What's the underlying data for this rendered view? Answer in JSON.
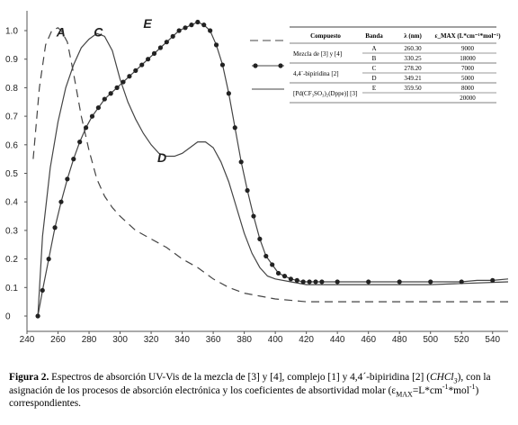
{
  "chart_data": {
    "type": "line",
    "title": "",
    "xlabel": "",
    "ylabel": "",
    "xlim": [
      240,
      550
    ],
    "ylim": [
      0,
      1.0
    ],
    "x_ticks": [
      "240",
      "260",
      "280",
      "300",
      "320",
      "340",
      "360",
      "380",
      "400",
      "420",
      "440",
      "460",
      "480",
      "500",
      "520",
      "540"
    ],
    "y_ticks": [
      "0",
      "0.1",
      "0.2",
      "0.3",
      "0.4",
      "0.5",
      "0.6",
      "0.7",
      "0.8",
      "0.9",
      "1.0"
    ],
    "grid": false,
    "series": [
      {
        "name": "A",
        "style": "dashed",
        "x": [
          244,
          248,
          252,
          256,
          260,
          262,
          266,
          270,
          275,
          280,
          285,
          290,
          295,
          300,
          310,
          320,
          330,
          340,
          350,
          360,
          370,
          380,
          400,
          420,
          440,
          460,
          500,
          550
        ],
        "y": [
          0.55,
          0.8,
          0.95,
          1.0,
          1.01,
          1.0,
          0.96,
          0.85,
          0.7,
          0.58,
          0.48,
          0.42,
          0.38,
          0.35,
          0.3,
          0.27,
          0.24,
          0.2,
          0.17,
          0.13,
          0.1,
          0.08,
          0.06,
          0.05,
          0.05,
          0.05,
          0.05,
          0.05
        ]
      },
      {
        "name": "C",
        "style": "solid",
        "x": [
          247,
          250,
          255,
          260,
          265,
          270,
          275,
          280,
          285,
          290,
          295,
          300,
          305,
          310,
          315,
          320,
          325,
          330,
          335,
          340,
          345,
          350,
          355,
          360,
          365,
          370,
          375,
          380,
          385,
          390,
          395,
          400,
          410,
          420,
          430,
          440,
          460,
          500,
          550
        ],
        "y": [
          0.0,
          0.28,
          0.52,
          0.68,
          0.8,
          0.88,
          0.94,
          0.97,
          0.99,
          0.98,
          0.93,
          0.83,
          0.75,
          0.69,
          0.64,
          0.6,
          0.57,
          0.56,
          0.56,
          0.57,
          0.59,
          0.61,
          0.61,
          0.59,
          0.54,
          0.47,
          0.38,
          0.29,
          0.22,
          0.17,
          0.14,
          0.13,
          0.12,
          0.11,
          0.11,
          0.11,
          0.11,
          0.11,
          0.12
        ]
      },
      {
        "name": "E",
        "style": "solid-markers",
        "x": [
          247,
          250,
          254,
          258,
          262,
          266,
          270,
          274,
          278,
          282,
          286,
          290,
          294,
          298,
          302,
          306,
          310,
          314,
          318,
          322,
          326,
          330,
          334,
          338,
          342,
          346,
          350,
          354,
          358,
          362,
          366,
          370,
          374,
          378,
          382,
          386,
          390,
          394,
          398,
          402,
          406,
          410,
          414,
          418,
          422,
          426,
          430,
          440,
          450,
          460,
          470,
          480,
          490,
          500,
          510,
          520,
          530,
          540,
          550
        ],
        "y": [
          0.0,
          0.09,
          0.2,
          0.31,
          0.4,
          0.48,
          0.55,
          0.61,
          0.66,
          0.7,
          0.73,
          0.76,
          0.78,
          0.8,
          0.82,
          0.84,
          0.86,
          0.88,
          0.9,
          0.92,
          0.94,
          0.96,
          0.98,
          1.0,
          1.01,
          1.02,
          1.03,
          1.02,
          1.0,
          0.95,
          0.88,
          0.78,
          0.66,
          0.54,
          0.44,
          0.35,
          0.27,
          0.21,
          0.18,
          0.15,
          0.14,
          0.13,
          0.125,
          0.12,
          0.12,
          0.12,
          0.12,
          0.12,
          0.12,
          0.12,
          0.12,
          0.12,
          0.12,
          0.12,
          0.12,
          0.12,
          0.125,
          0.125,
          0.13
        ]
      }
    ],
    "band_labels": [
      {
        "text": "A",
        "x": 259,
        "y": 0.98
      },
      {
        "text": "C",
        "x": 283,
        "y": 0.98
      },
      {
        "text": "E",
        "x": 315,
        "y": 1.01
      },
      {
        "text": "D",
        "x": 324,
        "y": 0.54
      }
    ],
    "colors": {
      "line": "#444444",
      "marker": "#222222",
      "axis": "#555555"
    }
  },
  "table": {
    "headers": [
      "Compuesto",
      "Banda",
      "λ (nm)",
      "ε_MAX (L*cm⁻¹*mol⁻¹)"
    ],
    "rows": [
      {
        "compound": "Mezcla de [3] y [4]",
        "legend": "dashed",
        "bands": [
          {
            "band": "A",
            "lambda": "260.30",
            "eps": "9000"
          },
          {
            "band": "B",
            "lambda": "330.25",
            "eps": "18000"
          }
        ]
      },
      {
        "compound": "4,4´-bipiridina [2]",
        "legend": "marker",
        "bands": [
          {
            "band": "C",
            "lambda": "278.20",
            "eps": "7000"
          },
          {
            "band": "D",
            "lambda": "349.21",
            "eps": "5000"
          }
        ]
      },
      {
        "compound": "[Pd(CF₃SO₃)₂(Dppe)] [3]",
        "legend": "solid",
        "bands": [
          {
            "band": "E",
            "lambda": "359.50",
            "eps": "8000"
          },
          {
            "band": "",
            "lambda": "",
            "eps": "20000"
          }
        ]
      }
    ]
  },
  "caption": {
    "label": "Figura 2.",
    "text1": " Espectros de absorción UV-Vis de la mezcla de [3] y [4], complejo [1] y 4,4´-bipiridina [2] (",
    "solvent": "CHCl",
    "solvent_sub": "3",
    "text2": "), con la asignación de los procesos de absorción electrónica y los coeficientes de absortividad molar (ε",
    "eps_sub": "MAX",
    "text3": "=L*cm",
    "sup1": "-1",
    "text4": "*mol",
    "sup2": "-1",
    "text5": ") correspondientes."
  }
}
